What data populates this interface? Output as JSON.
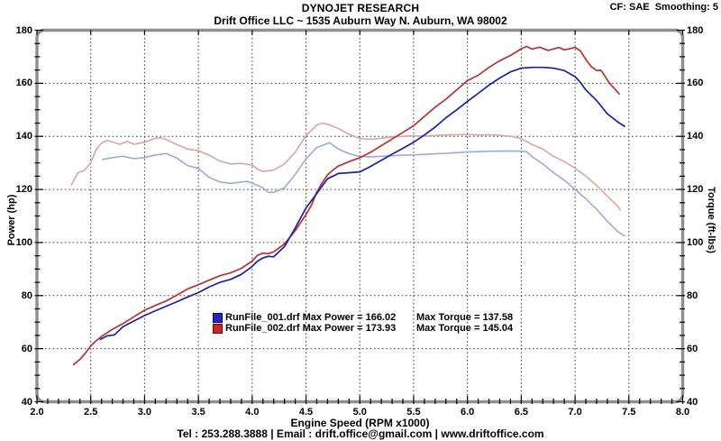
{
  "header": {
    "brand": "DYNOJET RESEARCH",
    "shop": "Drift Office LLC ~ 1535 Auburn Way N. Auburn, WA 98002",
    "correction": "CF: SAE  Smoothing: 5"
  },
  "footer": {
    "contact": "Tel : 253.288.3888 | Email : drift.office@gmail.com | www.driftoffice.com"
  },
  "legend": {
    "rows": [
      {
        "file": "RunFile_001.drf",
        "power_text": "RunFile_001.drf Max Power = 166.02",
        "torque_text": "Max Torque = 137.58",
        "swatch": "#2323c8",
        "swatch_border": "#00006e"
      },
      {
        "file": "RunFile_002.drf",
        "power_text": "RunFile_002.drf Max Power = 173.93",
        "torque_text": "Max Torque = 145.04",
        "swatch": "#cc2424",
        "swatch_border": "#6e0000"
      }
    ]
  },
  "chart_data": {
    "type": "line",
    "title": "DYNOJET RESEARCH",
    "xlabel": "Engine Speed (RPM x1000)",
    "ylabel_left": "Power (hp)",
    "ylabel_right": "Torque (ft-lbs)",
    "xlim": [
      2.0,
      8.0
    ],
    "ylim": [
      40,
      180
    ],
    "x_major": 0.5,
    "x_minor": 0.1,
    "y_major": 20,
    "y_minor": 5,
    "grid": "dotted",
    "legend_position": "inside-center-left",
    "x_tick_labels": [
      "2.0",
      "2.5",
      "3.0",
      "3.5",
      "4.0",
      "4.5",
      "5.0",
      "5.5",
      "6.0",
      "6.5",
      "7.0",
      "7.5",
      "8.0"
    ],
    "y_tick_labels": [
      "180",
      "160",
      "140",
      "120",
      "100",
      "80",
      "60",
      "40"
    ],
    "grid_color": "#333333",
    "frame_color": "#8f8f8f",
    "series": [
      {
        "name": "run2_torque",
        "run": "RunFile_002.drf",
        "unit": "ft-lbs",
        "color": "#d8a5a3",
        "max": 145.04,
        "points": [
          [
            2.32,
            121.7
          ],
          [
            2.38,
            126.3
          ],
          [
            2.44,
            127.2
          ],
          [
            2.5,
            130.0
          ],
          [
            2.55,
            135.0
          ],
          [
            2.6,
            137.5
          ],
          [
            2.65,
            138.5
          ],
          [
            2.7,
            137.9
          ],
          [
            2.77,
            137.0
          ],
          [
            2.84,
            138.1
          ],
          [
            2.9,
            137.0
          ],
          [
            3.0,
            137.8
          ],
          [
            3.1,
            139.3
          ],
          [
            3.15,
            139.5
          ],
          [
            3.2,
            138.8
          ],
          [
            3.3,
            136.9
          ],
          [
            3.4,
            135.2
          ],
          [
            3.5,
            134.6
          ],
          [
            3.6,
            132.9
          ],
          [
            3.7,
            130.7
          ],
          [
            3.8,
            129.6
          ],
          [
            3.9,
            129.8
          ],
          [
            4.0,
            129.2
          ],
          [
            4.05,
            127.6
          ],
          [
            4.1,
            126.8
          ],
          [
            4.2,
            127.3
          ],
          [
            4.3,
            129.6
          ],
          [
            4.4,
            134.1
          ],
          [
            4.5,
            140.2
          ],
          [
            4.6,
            144.3
          ],
          [
            4.66,
            145.0
          ],
          [
            4.7,
            144.6
          ],
          [
            4.8,
            143.0
          ],
          [
            4.9,
            140.8
          ],
          [
            5.0,
            139.2
          ],
          [
            5.1,
            138.9
          ],
          [
            5.2,
            139.3
          ],
          [
            5.3,
            139.8
          ],
          [
            5.4,
            140.0
          ],
          [
            5.5,
            140.2
          ],
          [
            5.6,
            140.1
          ],
          [
            5.7,
            140.3
          ],
          [
            5.8,
            140.5
          ],
          [
            5.9,
            140.6
          ],
          [
            6.0,
            140.7
          ],
          [
            6.1,
            140.5
          ],
          [
            6.2,
            140.6
          ],
          [
            6.3,
            140.4
          ],
          [
            6.4,
            140.0
          ],
          [
            6.5,
            139.2
          ],
          [
            6.6,
            136.9
          ],
          [
            6.7,
            135.2
          ],
          [
            6.8,
            132.5
          ],
          [
            6.9,
            130.5
          ],
          [
            7.0,
            128.0
          ],
          [
            7.1,
            125.0
          ],
          [
            7.2,
            121.5
          ],
          [
            7.3,
            117.5
          ],
          [
            7.4,
            113.5
          ],
          [
            7.42,
            112.3
          ]
        ]
      },
      {
        "name": "run1_torque",
        "run": "RunFile_001.drf",
        "unit": "ft-lbs",
        "color": "#9dabd3",
        "max": 137.58,
        "points": [
          [
            2.61,
            131.3
          ],
          [
            2.7,
            132.0
          ],
          [
            2.8,
            132.5
          ],
          [
            2.9,
            131.6
          ],
          [
            3.0,
            132.0
          ],
          [
            3.1,
            133.0
          ],
          [
            3.2,
            133.5
          ],
          [
            3.3,
            131.8
          ],
          [
            3.4,
            129.0
          ],
          [
            3.5,
            127.9
          ],
          [
            3.6,
            124.5
          ],
          [
            3.7,
            122.8
          ],
          [
            3.8,
            122.3
          ],
          [
            3.9,
            122.8
          ],
          [
            3.95,
            123.0
          ],
          [
            4.0,
            122.4
          ],
          [
            4.1,
            120.6
          ],
          [
            4.15,
            118.9
          ],
          [
            4.2,
            118.9
          ],
          [
            4.3,
            120.6
          ],
          [
            4.4,
            125.7
          ],
          [
            4.5,
            131.5
          ],
          [
            4.6,
            135.8
          ],
          [
            4.72,
            137.6
          ],
          [
            4.8,
            135.2
          ],
          [
            4.9,
            133.5
          ],
          [
            5.0,
            132.4
          ],
          [
            5.1,
            132.3
          ],
          [
            5.2,
            132.5
          ],
          [
            5.3,
            132.7
          ],
          [
            5.4,
            132.9
          ],
          [
            5.5,
            133.0
          ],
          [
            5.6,
            133.2
          ],
          [
            5.7,
            133.4
          ],
          [
            5.8,
            133.6
          ],
          [
            5.9,
            133.9
          ],
          [
            6.0,
            134.1
          ],
          [
            6.2,
            134.4
          ],
          [
            6.4,
            134.5
          ],
          [
            6.5,
            134.4
          ],
          [
            6.55,
            134.2
          ],
          [
            6.6,
            132.4
          ],
          [
            6.7,
            129.6
          ],
          [
            6.8,
            126.3
          ],
          [
            6.9,
            123.5
          ],
          [
            7.0,
            120.0
          ],
          [
            7.1,
            116.5
          ],
          [
            7.2,
            112.5
          ],
          [
            7.3,
            108.0
          ],
          [
            7.4,
            104.0
          ],
          [
            7.46,
            102.5
          ]
        ]
      },
      {
        "name": "run2_power",
        "run": "RunFile_002.drf",
        "unit": "hp",
        "color": "#b23434",
        "max": 173.93,
        "points": [
          [
            2.34,
            54.0
          ],
          [
            2.4,
            56.0
          ],
          [
            2.45,
            58.3
          ],
          [
            2.5,
            61.0
          ],
          [
            2.55,
            63.0
          ],
          [
            2.6,
            64.6
          ],
          [
            2.7,
            67.3
          ],
          [
            2.8,
            69.5
          ],
          [
            2.9,
            72.0
          ],
          [
            3.0,
            74.5
          ],
          [
            3.1,
            76.3
          ],
          [
            3.2,
            78.0
          ],
          [
            3.3,
            80.2
          ],
          [
            3.4,
            82.5
          ],
          [
            3.5,
            84.1
          ],
          [
            3.6,
            85.8
          ],
          [
            3.7,
            87.5
          ],
          [
            3.8,
            88.6
          ],
          [
            3.9,
            90.3
          ],
          [
            4.0,
            93.0
          ],
          [
            4.05,
            95.2
          ],
          [
            4.1,
            96.0
          ],
          [
            4.15,
            95.8
          ],
          [
            4.2,
            96.5
          ],
          [
            4.3,
            99.5
          ],
          [
            4.4,
            104.5
          ],
          [
            4.5,
            110.5
          ],
          [
            4.55,
            114.0
          ],
          [
            4.6,
            119.0
          ],
          [
            4.65,
            122.5
          ],
          [
            4.7,
            125.5
          ],
          [
            4.75,
            127.3
          ],
          [
            4.8,
            128.8
          ],
          [
            4.9,
            130.5
          ],
          [
            5.0,
            132.0
          ],
          [
            5.1,
            134.0
          ],
          [
            5.2,
            136.5
          ],
          [
            5.3,
            139.0
          ],
          [
            5.4,
            141.5
          ],
          [
            5.5,
            144.0
          ],
          [
            5.6,
            147.5
          ],
          [
            5.7,
            151.0
          ],
          [
            5.8,
            154.0
          ],
          [
            5.9,
            157.5
          ],
          [
            6.0,
            161.0
          ],
          [
            6.1,
            163.0
          ],
          [
            6.2,
            166.0
          ],
          [
            6.3,
            168.5
          ],
          [
            6.4,
            170.5
          ],
          [
            6.5,
            173.0
          ],
          [
            6.55,
            173.9
          ],
          [
            6.6,
            172.9
          ],
          [
            6.67,
            173.6
          ],
          [
            6.75,
            172.4
          ],
          [
            6.85,
            173.5
          ],
          [
            6.9,
            172.6
          ],
          [
            7.0,
            173.5
          ],
          [
            7.05,
            172.2
          ],
          [
            7.1,
            169.0
          ],
          [
            7.15,
            166.3
          ],
          [
            7.2,
            164.8
          ],
          [
            7.24,
            164.9
          ],
          [
            7.27,
            163.2
          ],
          [
            7.32,
            160.0
          ],
          [
            7.36,
            158.3
          ],
          [
            7.41,
            156.0
          ]
        ]
      },
      {
        "name": "run1_power",
        "run": "RunFile_001.drf",
        "unit": "hp",
        "color": "#20209e",
        "max": 166.02,
        "points": [
          [
            2.59,
            63.5
          ],
          [
            2.65,
            64.8
          ],
          [
            2.72,
            65.2
          ],
          [
            2.8,
            68.3
          ],
          [
            2.9,
            70.4
          ],
          [
            3.0,
            72.5
          ],
          [
            3.1,
            74.3
          ],
          [
            3.2,
            76.0
          ],
          [
            3.3,
            77.7
          ],
          [
            3.4,
            79.5
          ],
          [
            3.5,
            81.1
          ],
          [
            3.6,
            83.3
          ],
          [
            3.7,
            85.0
          ],
          [
            3.8,
            86.1
          ],
          [
            3.9,
            88.0
          ],
          [
            4.0,
            91.0
          ],
          [
            4.05,
            93.0
          ],
          [
            4.1,
            94.2
          ],
          [
            4.15,
            94.8
          ],
          [
            4.2,
            94.6
          ],
          [
            4.3,
            98.5
          ],
          [
            4.4,
            105.5
          ],
          [
            4.5,
            113.0
          ],
          [
            4.6,
            118.5
          ],
          [
            4.7,
            124.0
          ],
          [
            4.8,
            126.0
          ],
          [
            4.9,
            126.3
          ],
          [
            5.0,
            126.6
          ],
          [
            5.1,
            128.7
          ],
          [
            5.2,
            131.0
          ],
          [
            5.3,
            133.3
          ],
          [
            5.4,
            135.5
          ],
          [
            5.5,
            137.8
          ],
          [
            5.6,
            140.5
          ],
          [
            5.7,
            143.5
          ],
          [
            5.8,
            147.0
          ],
          [
            5.9,
            150.0
          ],
          [
            6.0,
            153.2
          ],
          [
            6.1,
            156.2
          ],
          [
            6.2,
            159.3
          ],
          [
            6.3,
            162.0
          ],
          [
            6.4,
            164.3
          ],
          [
            6.5,
            165.7
          ],
          [
            6.6,
            166.0
          ],
          [
            6.7,
            166.0
          ],
          [
            6.8,
            165.7
          ],
          [
            6.9,
            164.8
          ],
          [
            7.0,
            162.5
          ],
          [
            7.05,
            160.3
          ],
          [
            7.1,
            157.5
          ],
          [
            7.2,
            153.5
          ],
          [
            7.3,
            148.5
          ],
          [
            7.4,
            145.3
          ],
          [
            7.46,
            143.8
          ]
        ]
      }
    ]
  }
}
